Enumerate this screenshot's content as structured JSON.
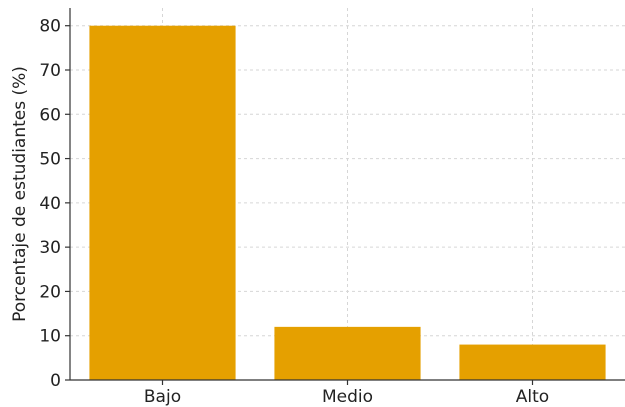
{
  "chart_data": {
    "type": "bar",
    "categories": [
      "Bajo",
      "Medio",
      "Alto"
    ],
    "values": [
      80,
      12,
      8
    ],
    "title": "",
    "xlabel": "",
    "ylabel": "Porcentaje de estudiantes (%)",
    "ylim": [
      0,
      84
    ],
    "yticks": [
      0,
      10,
      20,
      30,
      40,
      50,
      60,
      70,
      80
    ],
    "grid": true,
    "bar_color": "#E5A000"
  }
}
